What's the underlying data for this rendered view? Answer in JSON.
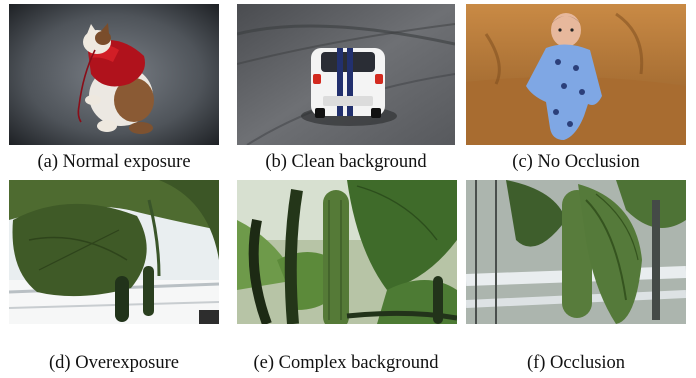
{
  "figure": {
    "panels": [
      {
        "id": "a",
        "caption": "(a) Normal exposure",
        "subject": "cat-in-red-sweater-photo"
      },
      {
        "id": "b",
        "caption": "(b) Clean background",
        "subject": "white-race-car-photo"
      },
      {
        "id": "c",
        "caption": "(c) No Occlusion",
        "subject": "baby-on-leather-couch-photo"
      },
      {
        "id": "d",
        "caption": "(d) Overexposure",
        "subject": "greenhouse-cucumber-overexposed-photo"
      },
      {
        "id": "e",
        "caption": "(e) Complex background",
        "subject": "greenhouse-cucumber-complex-photo"
      },
      {
        "id": "f",
        "caption": "(f) Occlusion",
        "subject": "greenhouse-cucumber-occluded-photo"
      }
    ]
  },
  "colors": {
    "caption_text": "#111111",
    "background": "#ffffff"
  }
}
